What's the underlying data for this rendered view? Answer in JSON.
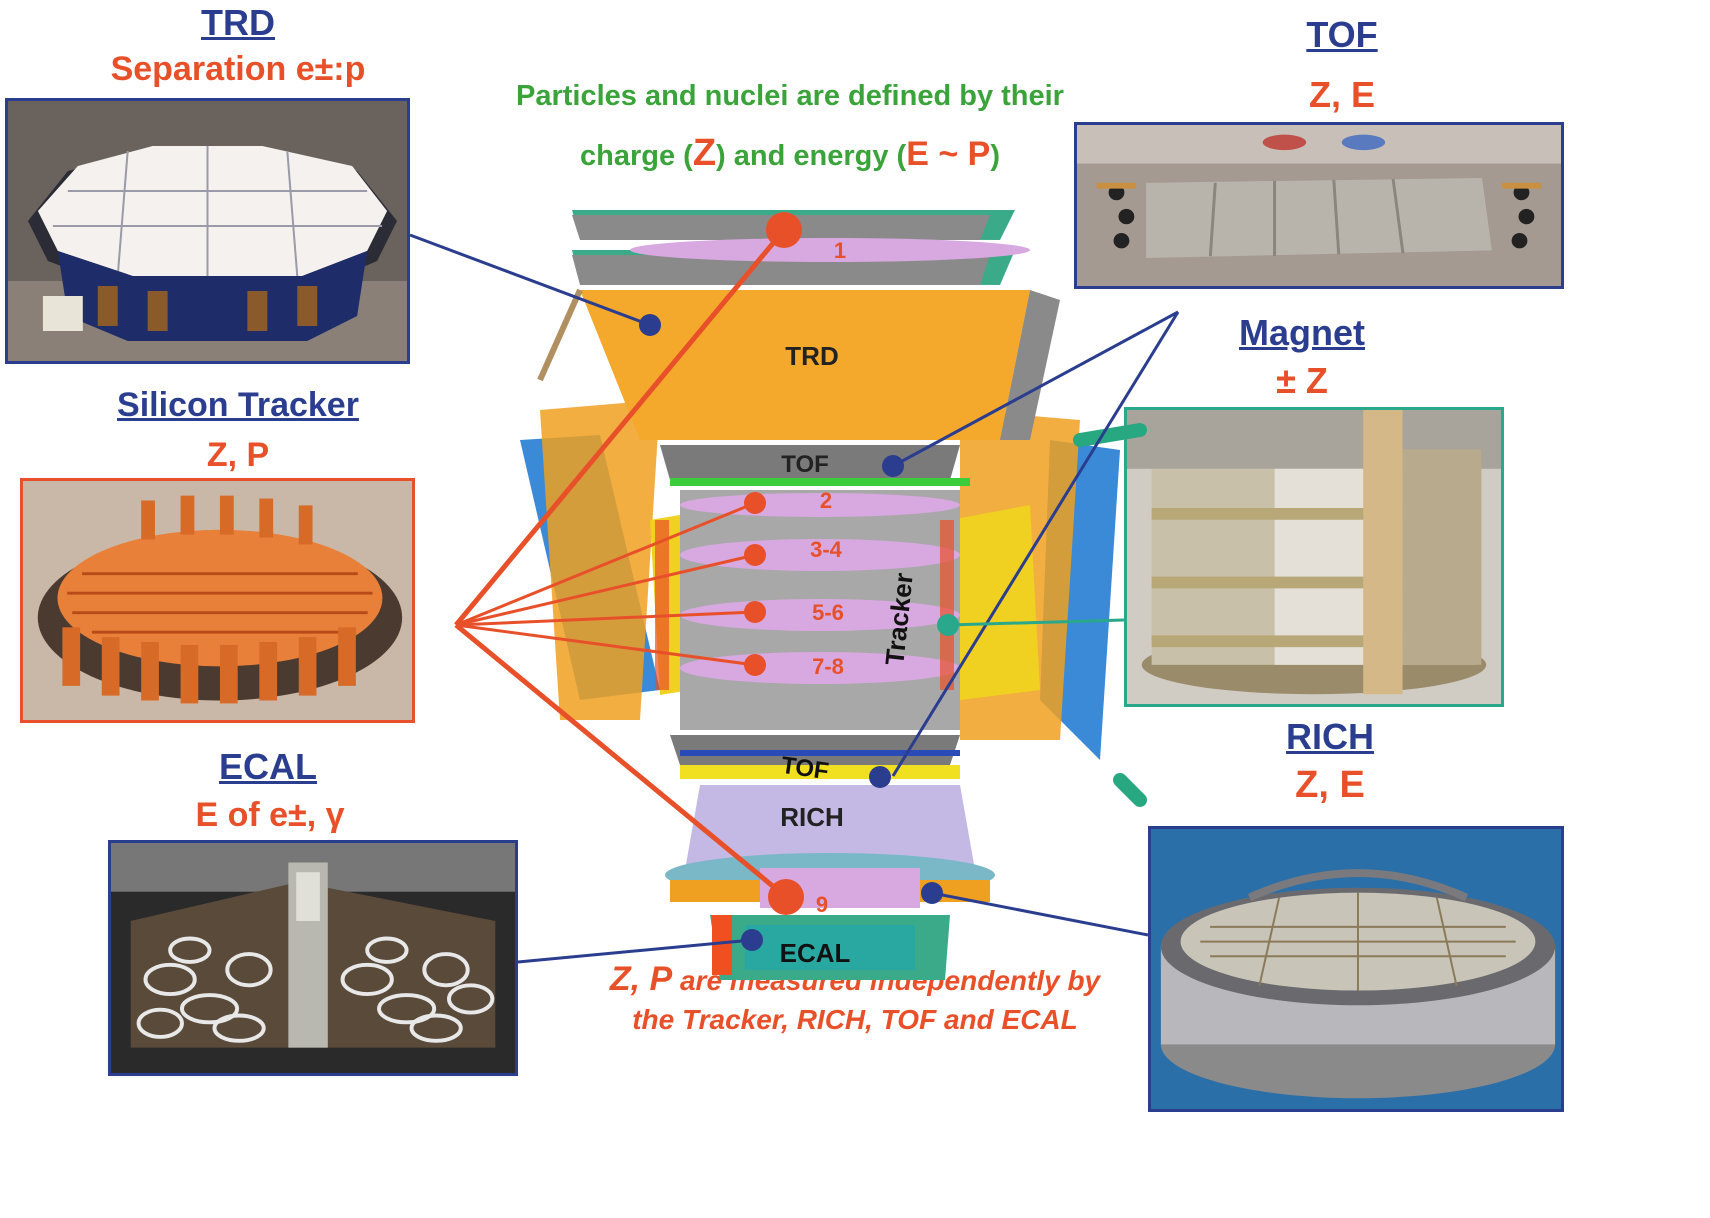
{
  "panels": {
    "trd": {
      "title": "TRD",
      "subtitle": "Separation e±:p"
    },
    "tracker": {
      "title": "Silicon Tracker",
      "subtitle": "Z, P"
    },
    "ecal": {
      "title": "ECAL",
      "subtitle": "E of e±, γ"
    },
    "tof": {
      "title": "TOF",
      "subtitle": "Z, E"
    },
    "magnet": {
      "title": "Magnet",
      "subtitle": "± Z"
    },
    "rich": {
      "title": "RICH",
      "subtitle": "Z, E"
    }
  },
  "header": {
    "line1": "Particles and nuclei are defined by their",
    "line2_pre": "charge (",
    "line2_z": "Z",
    "line2_mid": ") and energy (",
    "line2_ep": "E ~ P",
    "line2_post": ")"
  },
  "detector_labels": {
    "trd": "TRD",
    "tof_upper": "TOF",
    "tof_lower": "TOF",
    "tracker": "Tracker",
    "rich": "RICH",
    "ecal": "ECAL",
    "layer_1": "1",
    "layer_2": "2",
    "layer_3_4": "3-4",
    "layer_5_6": "5-6",
    "layer_7_8": "7-8",
    "layer_9": "9"
  },
  "footer": {
    "line1_zp": "Z, P",
    "line1_rest": " are measured independently by",
    "line2": "the Tracker, RICH, TOF and ECAL"
  },
  "colors": {
    "title_blue": "#2b3d8f",
    "accent_red": "#e8502a",
    "header_green": "#3aa33a",
    "magnet_frame": "#2aa88c"
  }
}
